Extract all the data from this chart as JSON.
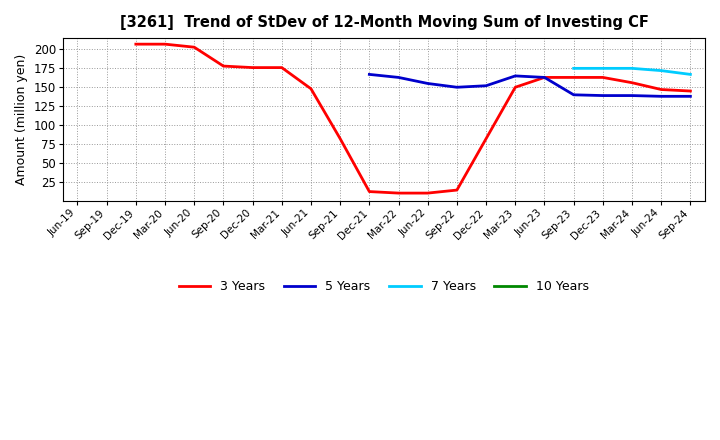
{
  "title": "[3261]  Trend of StDev of 12-Month Moving Sum of Investing CF",
  "ylabel": "Amount (million yen)",
  "background_color": "#ffffff",
  "grid_color": "#999999",
  "ylim": [
    0,
    215
  ],
  "yticks": [
    25,
    50,
    75,
    100,
    125,
    150,
    175,
    200
  ],
  "series": {
    "3 Years": {
      "color": "#ff0000",
      "dates": [
        "Jun-19",
        "Sep-19",
        "Dec-19",
        "Mar-20",
        "Jun-20",
        "Sep-20",
        "Dec-20",
        "Mar-21",
        "Jun-21",
        "Sep-21",
        "Dec-21",
        "Mar-22",
        "Jun-22",
        "Sep-22",
        "Dec-22",
        "Mar-23",
        "Jun-23",
        "Sep-23",
        "Dec-23",
        "Mar-24",
        "Jun-24",
        "Sep-24"
      ],
      "values": [
        null,
        null,
        207,
        207,
        203,
        178,
        176,
        176,
        148,
        82,
        12,
        10,
        10,
        14,
        82,
        150,
        163,
        163,
        163,
        156,
        147,
        145
      ]
    },
    "5 Years": {
      "color": "#0000cc",
      "dates": [
        "Dec-21",
        "Mar-22",
        "Jun-22",
        "Sep-22",
        "Dec-22",
        "Mar-23",
        "Jun-23",
        "Sep-23",
        "Dec-23",
        "Mar-24",
        "Jun-24",
        "Sep-24"
      ],
      "values": [
        167,
        163,
        155,
        150,
        152,
        165,
        163,
        140,
        139,
        139,
        138,
        138
      ]
    },
    "7 Years": {
      "color": "#00ccff",
      "dates": [
        "Sep-23",
        "Dec-23",
        "Mar-24",
        "Jun-24",
        "Sep-24"
      ],
      "values": [
        175,
        175,
        175,
        172,
        167
      ]
    },
    "10 Years": {
      "color": "#008800",
      "dates": [],
      "values": []
    }
  },
  "xtick_labels": [
    "Jun-19",
    "Sep-19",
    "Dec-19",
    "Mar-20",
    "Jun-20",
    "Sep-20",
    "Dec-20",
    "Mar-21",
    "Jun-21",
    "Sep-21",
    "Dec-21",
    "Mar-22",
    "Jun-22",
    "Sep-22",
    "Dec-22",
    "Mar-23",
    "Jun-23",
    "Sep-23",
    "Dec-23",
    "Mar-24",
    "Jun-24",
    "Sep-24"
  ],
  "legend_entries": [
    "3 Years",
    "5 Years",
    "7 Years",
    "10 Years"
  ],
  "legend_colors": [
    "#ff0000",
    "#0000cc",
    "#00ccff",
    "#008800"
  ]
}
